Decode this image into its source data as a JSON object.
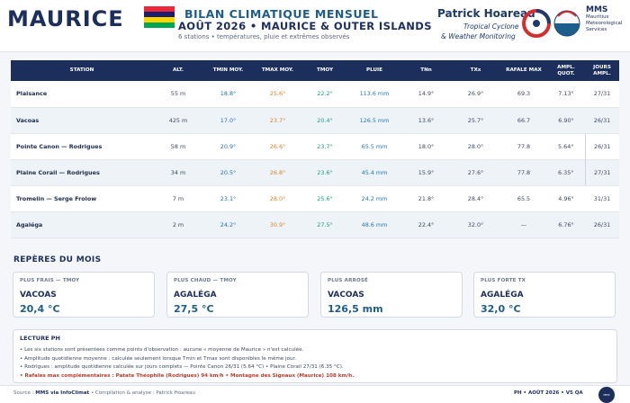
{
  "header": {
    "brand": "MAURICE",
    "title": "BILAN CLIMATIQUE MENSUEL",
    "subtitle": "AOÛT 2026 • MAURICE & OUTER ISLANDS",
    "subtitle2": "6 stations • températures, pluie et extrêmes observés",
    "comma": ",",
    "ph_name": "Patrick Hoareau",
    "ph_line1": "Tropical Cyclone",
    "ph_line2": "& Weather Monitoring",
    "mms_short": "MMS",
    "mms_line1": "Mauritius",
    "mms_line2": "Meteorological",
    "mms_line3": "Services",
    "logo_badge": "MMS",
    "flag_colors": [
      "#ea2839",
      "#1a206d",
      "#ffd500",
      "#00a551"
    ]
  },
  "table": {
    "headers": [
      "STATION",
      "ALT.",
      "TMIN MOY.",
      "TMAX MOY.",
      "TMOY",
      "PLUIE",
      "TNn",
      "TXx",
      "RAFALE MAX",
      "AMPL. QUOT.",
      "JOURS AMPL."
    ],
    "rows": [
      [
        "Plaisance",
        "55 m",
        "18.8°",
        "25.6°",
        "22.2°",
        "113.6 mm",
        "14.9°",
        "26.9°",
        "69.3",
        "7.13°",
        "27/31"
      ],
      [
        "Vacoas",
        "425 m",
        "17.0°",
        "23.7°",
        "20.4°",
        "126.5 mm",
        "13.6°",
        "25.7°",
        "66.7",
        "6.90°",
        "26/31"
      ],
      [
        "Pointe Canon — Rodrigues",
        "58 m",
        "20.9°",
        "26.6°",
        "23.7°",
        "65.5 mm",
        "18.0°",
        "28.0°",
        "77.8",
        "5.64°",
        "26/31"
      ],
      [
        "Plaine Corail — Rodrigues",
        "34 m",
        "20.5°",
        "26.8°",
        "23.6°",
        "45.4 mm",
        "15.9°",
        "27.6°",
        "77.8",
        "6.35°",
        "27/31"
      ],
      [
        "Tromelin — Serge Frolow",
        "7 m",
        "23.1°",
        "28.0°",
        "25.6°",
        "24.2 mm",
        "21.8°",
        "28.4°",
        "65.5",
        "4.96°",
        "31/31"
      ],
      [
        "Agaléga",
        "2 m",
        "24.2°",
        "30.9°",
        "27.5°",
        "48.6 mm",
        "22.4°",
        "32.0°",
        "—",
        "6.76°",
        "26/31"
      ]
    ]
  },
  "reperes": {
    "title": "REPÈRES DU MOIS",
    "cards": [
      {
        "label": "PLUS FRAIS — TMOY",
        "station": "VACOAS",
        "value": "20,4 °C"
      },
      {
        "label": "PLUS CHAUD — TMOY",
        "station": "AGALÉGA",
        "value": "27,5 °C"
      },
      {
        "label": "PLUS ARROSÉ",
        "station": "VACOAS",
        "value": "126,5 mm"
      },
      {
        "label": "PLUS FORTE TX",
        "station": "AGALÉGA",
        "value": "32,0 °C"
      }
    ]
  },
  "notes": {
    "title": "LECTURE PH",
    "items": [
      "• Les six stations sont présentées comme points d'observation : aucune « moyenne de Maurice » n'est calculée.",
      "• Amplitude quotidienne moyenne : calculée seulement lorsque Tmin et Tmax sont disponibles le même jour.",
      "• Rodrigues : amplitude quotidienne calculée sur jours complets — Pointe Canon 26/31 (5.64 °C) • Plaine Corail 27/31 (6.35 °C).",
      "• Rafales max complémentaires : Patate Théophile (Rodrigues) 94 km/h • Montagne des Signaux (Maurice) 108 km/h."
    ]
  },
  "footer": {
    "source_label": "Source :",
    "source": "MMS via InfoClimat",
    "credit": "• Compilation & analyse : Patrick Hoareau",
    "right": "PH • AOÛT 2026 • V5 QA"
  }
}
